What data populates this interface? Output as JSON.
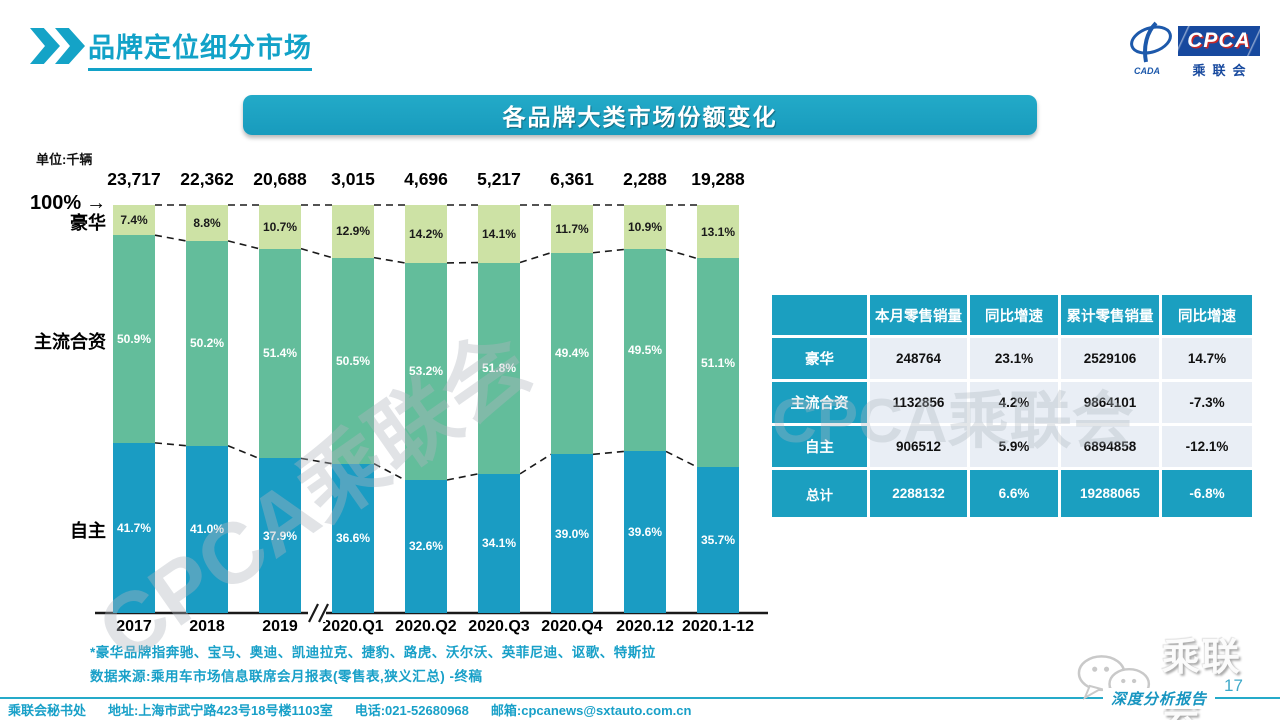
{
  "header": {
    "title": "品牌定位细分市场"
  },
  "logo": {
    "cpca": "CPCA",
    "cada": "CADA",
    "name": "乘联会"
  },
  "banner": {
    "title": "各品牌大类市场份额变化"
  },
  "colors": {
    "accent_teal": "#14a0c4",
    "bar_luxury": "#cde2a5",
    "bar_mainstream": "#63bd9b",
    "bar_domestic": "#1a9cc3",
    "table_header": "#1b9fc0",
    "table_cell_bg": "#e9eef5"
  },
  "chart_data": {
    "type": "bar",
    "stacked": true,
    "unit_label": "单位:千辆",
    "axis_label_100": "100%",
    "axis_arrow": "→",
    "ylim": [
      0,
      100
    ],
    "categories": [
      "2017",
      "2018",
      "2019",
      "2020.Q1",
      "2020.Q2",
      "2020.Q3",
      "2020.Q4",
      "2020.12",
      "2020.1-12"
    ],
    "totals": [
      23717,
      22362,
      20688,
      3015,
      4696,
      5217,
      6361,
      2288,
      19288
    ],
    "totals_labels": [
      "23,717",
      "22,362",
      "20,688",
      "3,015",
      "4,696",
      "5,217",
      "6,361",
      "2,288",
      "19,288"
    ],
    "series": [
      {
        "name": "豪华",
        "color": "#cde2a5",
        "label_color": "#1a1a1a",
        "values": [
          7.4,
          8.8,
          10.7,
          12.9,
          14.2,
          14.1,
          11.7,
          10.9,
          13.1
        ]
      },
      {
        "name": "主流合资",
        "color": "#63bd9b",
        "label_color": "#ffffff",
        "values": [
          50.9,
          50.2,
          51.4,
          50.5,
          53.2,
          51.8,
          49.4,
          49.5,
          51.1
        ]
      },
      {
        "name": "自主",
        "color": "#1a9cc3",
        "label_color": "#ffffff",
        "values": [
          41.7,
          41.0,
          37.9,
          36.6,
          32.6,
          34.1,
          39.0,
          39.6,
          35.7
        ]
      }
    ]
  },
  "table": {
    "headers": [
      "",
      "本月零售销量",
      "同比增速",
      "累计零售销量",
      "同比增速"
    ],
    "rows": [
      {
        "label": "豪华",
        "values": [
          "248764",
          "23.1%",
          "2529106",
          "14.7%"
        ],
        "total": false
      },
      {
        "label": "主流合资",
        "values": [
          "1132856",
          "4.2%",
          "9864101",
          "-7.3%"
        ],
        "total": false
      },
      {
        "label": "自主",
        "values": [
          "906512",
          "5.9%",
          "6894858",
          "-12.1%"
        ],
        "total": false
      },
      {
        "label": "总计",
        "values": [
          "2288132",
          "6.6%",
          "19288065",
          "-6.8%"
        ],
        "total": true
      }
    ]
  },
  "footnotes": {
    "line1": "*豪华品牌指奔驰、宝马、奥迪、凯迪拉克、捷豹、路虎、沃尔沃、英菲尼迪、讴歌、特斯拉",
    "line2": "数据来源:乘用车市场信息联席会月报表(零售表,狭义汇总)  -终稿"
  },
  "footer": {
    "items": [
      "乘联会秘书处",
      "地址:上海市武宁路423号18号楼1103室",
      "电话:021-52680968",
      "邮箱:cpcanews@sxtauto.com.cn"
    ]
  },
  "watermark": "CPCA乘联会",
  "wechat_name": "乘联会",
  "page_number": "17",
  "report_label": "深度分析报告"
}
